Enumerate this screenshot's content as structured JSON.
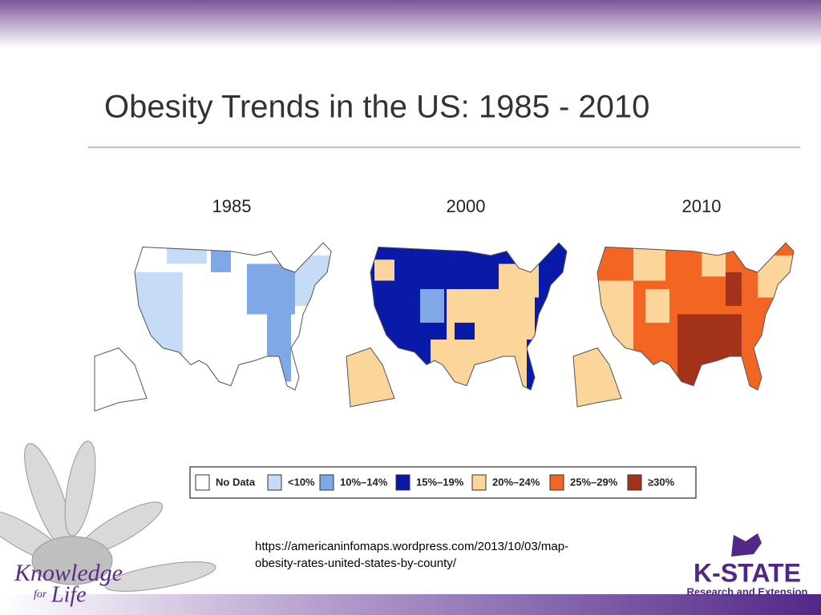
{
  "title": "Obesity Trends in the US: 1985 - 2010",
  "maps": [
    {
      "year": "1985"
    },
    {
      "year": "2000"
    },
    {
      "year": "2010"
    }
  ],
  "legend": [
    {
      "label": "No Data",
      "color": "#ffffff"
    },
    {
      "label": "<10%",
      "color": "#c6dbf5"
    },
    {
      "label": "10%–14%",
      "color": "#7fa9e6"
    },
    {
      "label": "15%–19%",
      "color": "#0a1aa8"
    },
    {
      "label": "20%–24%",
      "color": "#fbd59a"
    },
    {
      "label": "25%–29%",
      "color": "#f26522"
    },
    {
      "label": "≥30%",
      "color": "#a3321a"
    }
  ],
  "source": {
    "line1": "https://americaninfomaps.wordpress.com/2013/10/03/map-",
    "line2": "obesity-rates-united-states-by-county/"
  },
  "logos": {
    "left": {
      "word1": "Knowledge",
      "word2": "for",
      "word3": "Life"
    },
    "right": {
      "name": "K-STATE",
      "tagline": "Research and Extension"
    }
  }
}
